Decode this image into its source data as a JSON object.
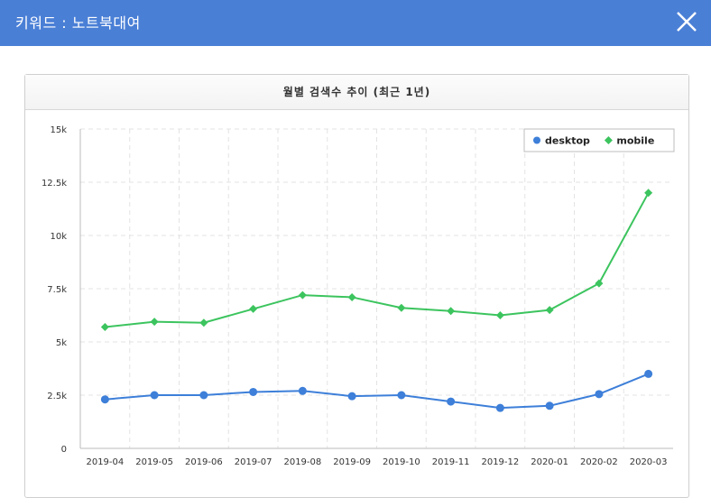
{
  "header": {
    "title": "키워드 : 노트북대여"
  },
  "panel": {
    "title": "월별 검색수 추이 (최근 1년)"
  },
  "colors": {
    "header_bg": "#4a7fd6",
    "desktop": "#3d7fd9",
    "mobile": "#3cc45e"
  },
  "icons": {
    "close": "close-icon"
  },
  "chart_data": {
    "type": "line",
    "title": "월별 검색수 추이 (최근 1년)",
    "categories": [
      "2019-04",
      "2019-05",
      "2019-06",
      "2019-07",
      "2019-08",
      "2019-09",
      "2019-10",
      "2019-11",
      "2019-12",
      "2020-01",
      "2020-02",
      "2020-03"
    ],
    "series": [
      {
        "name": "desktop",
        "color": "#3d7fd9",
        "marker": "circle",
        "values": [
          2300,
          2500,
          2500,
          2650,
          2700,
          2450,
          2500,
          2200,
          1900,
          2000,
          2550,
          3500
        ]
      },
      {
        "name": "mobile",
        "color": "#3cc45e",
        "marker": "diamond",
        "values": [
          5700,
          5950,
          5900,
          6550,
          7200,
          7100,
          6600,
          6450,
          6250,
          6500,
          7750,
          12000
        ]
      }
    ],
    "yticks": [
      "0",
      "2.5k",
      "5k",
      "7.5k",
      "10k",
      "12.5k",
      "15k"
    ],
    "ylim": [
      0,
      15000
    ],
    "grid": true,
    "legend_position": "top-right"
  }
}
